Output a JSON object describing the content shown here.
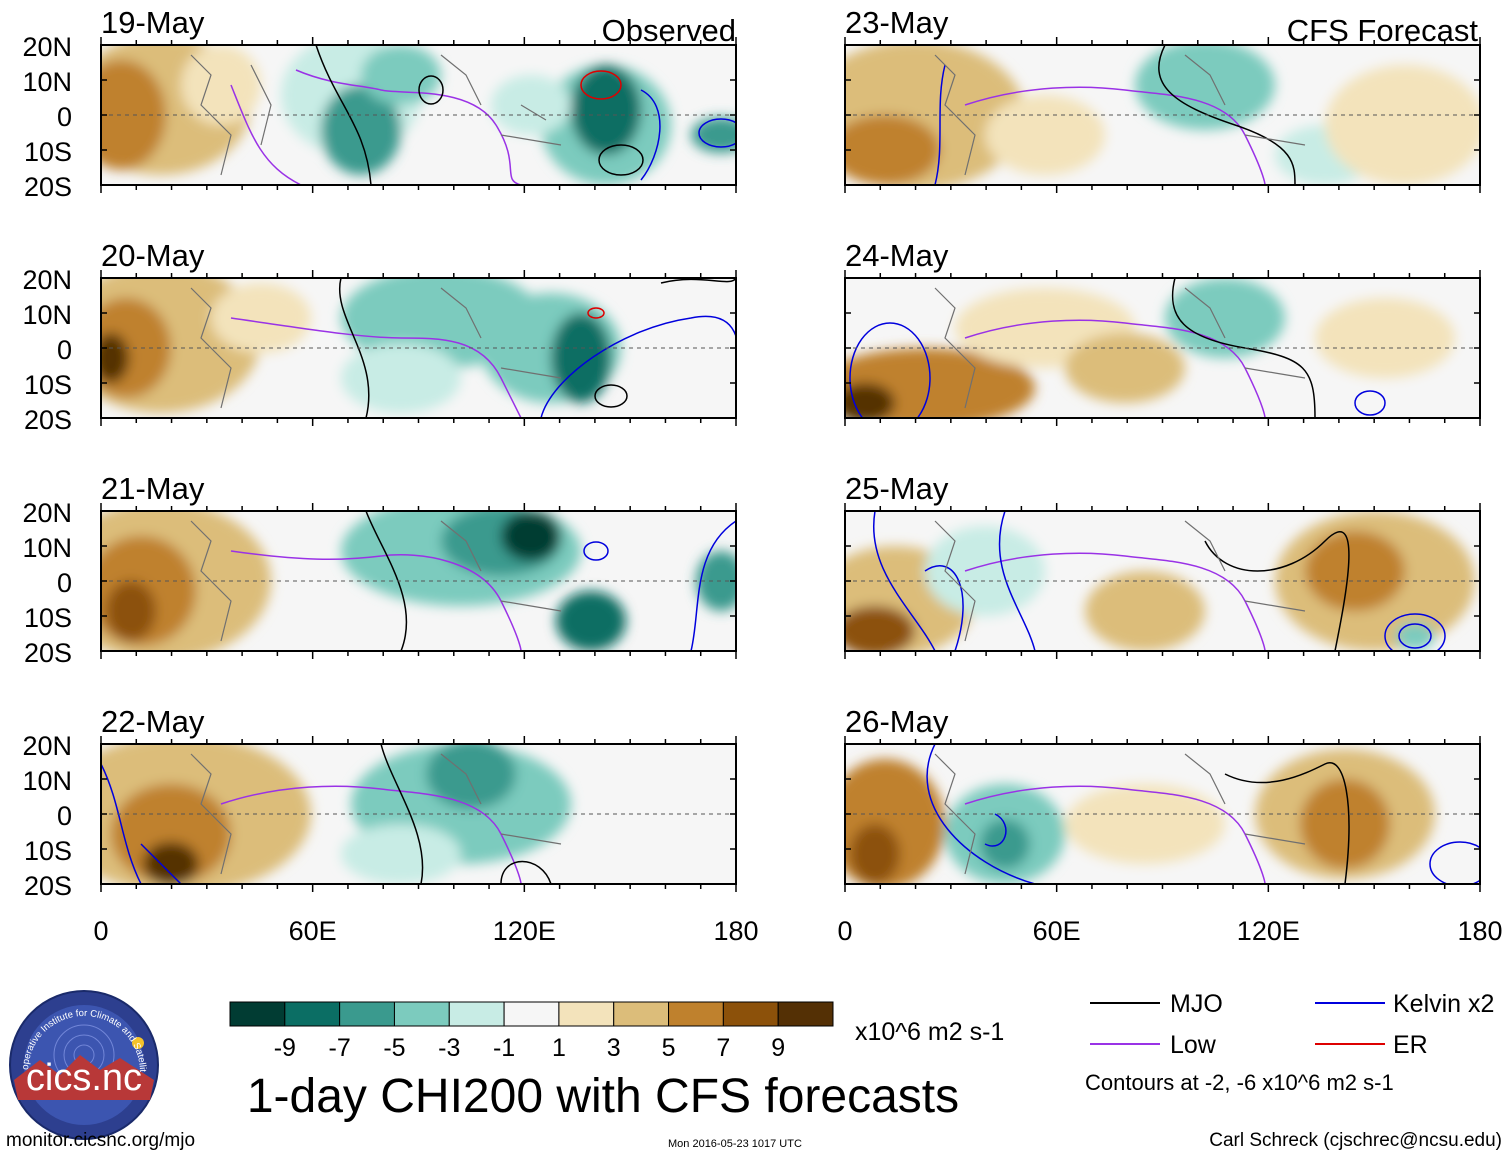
{
  "title": "1-day CHI200 with CFS forecasts",
  "columns": {
    "observed": "Observed",
    "forecast": "CFS Forecast"
  },
  "panels": {
    "observed": [
      {
        "date": "19-May"
      },
      {
        "date": "20-May"
      },
      {
        "date": "21-May"
      },
      {
        "date": "22-May"
      }
    ],
    "forecast": [
      {
        "date": "23-May"
      },
      {
        "date": "24-May"
      },
      {
        "date": "25-May"
      },
      {
        "date": "26-May"
      }
    ]
  },
  "axes": {
    "lat_labels": [
      "20N",
      "10N",
      "0",
      "10S",
      "20S"
    ],
    "lon_labels": [
      "0",
      "60E",
      "120E",
      "180"
    ],
    "lat_range": [
      -20,
      20
    ],
    "lon_range": [
      0,
      180
    ]
  },
  "colorbar": {
    "labels": [
      "-9",
      "-7",
      "-5",
      "-3",
      "-1",
      "1",
      "3",
      "5",
      "7",
      "9"
    ],
    "colors": [
      "#013c33",
      "#0b6e64",
      "#3a9a8e",
      "#7ccbbe",
      "#c8ece5",
      "#f6f6f6",
      "#f3e3bb",
      "#dcbd7a",
      "#bf812d",
      "#8c510a",
      "#543005"
    ],
    "units": "x10^6 m2 s-1"
  },
  "legend": {
    "items": [
      {
        "label": "MJO",
        "color": "#000000"
      },
      {
        "label": "Kelvin x2",
        "color": "#0000dd"
      },
      {
        "label": "Low",
        "color": "#9a32e6"
      },
      {
        "label": "ER",
        "color": "#dd0000"
      }
    ],
    "contours_note": "Contours at -2, -6 x10^6 m2 s-1"
  },
  "logo": {
    "text": "cics.nc",
    "arc_text": "Cooperative Institute for Climate and Satellites"
  },
  "footer": {
    "left": "monitor.cicsnc.org/mjo",
    "center": "Mon 2016-05-23 1017 UTC",
    "right": "Carl Schreck (cjschrec@ncsu.edu)"
  }
}
